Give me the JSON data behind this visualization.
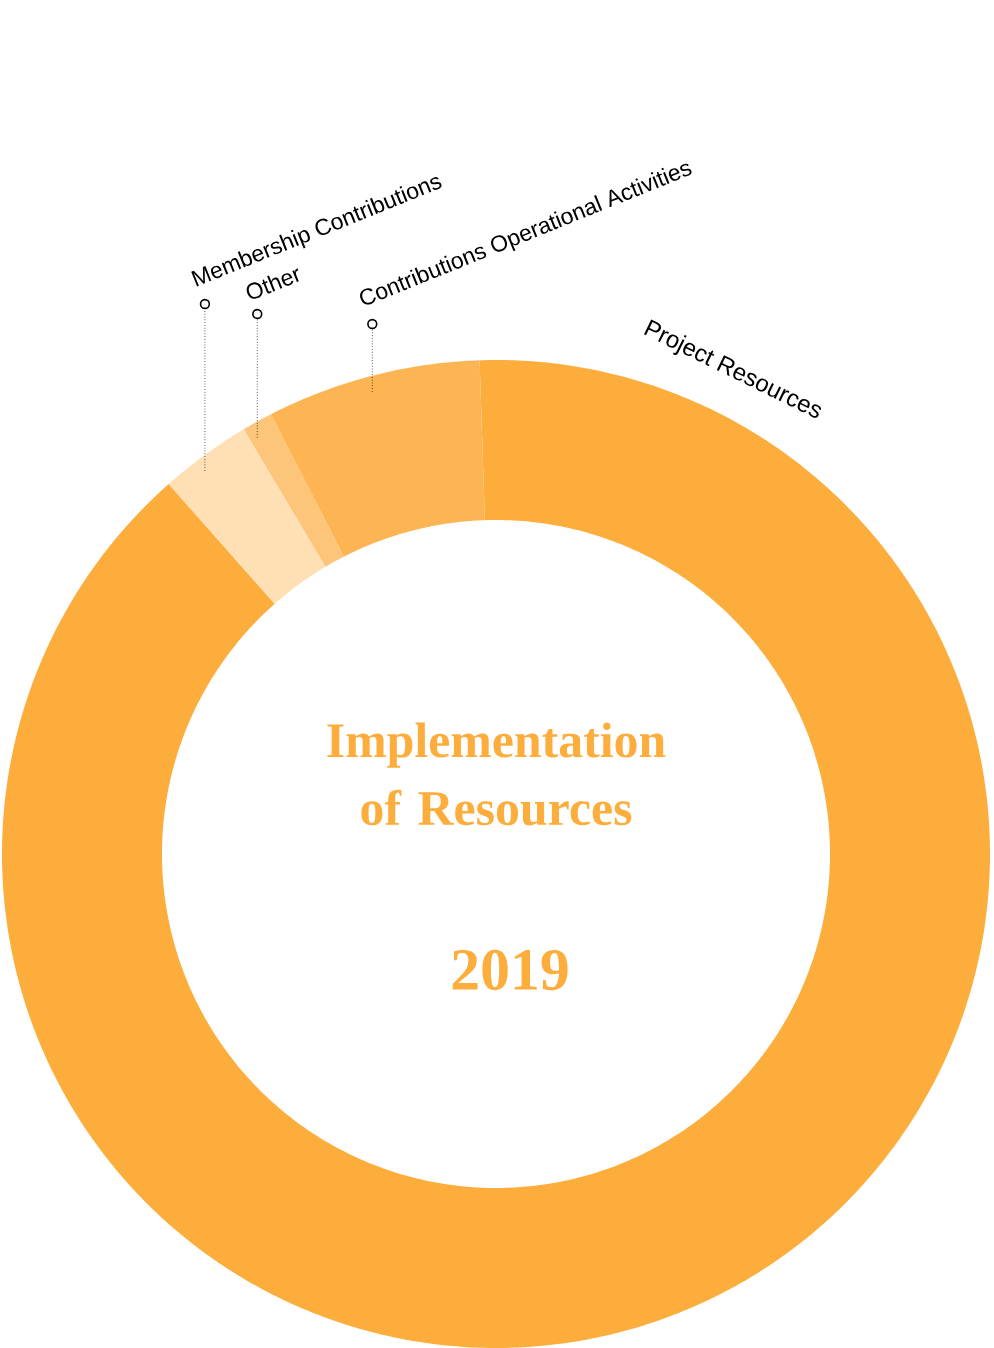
{
  "chart_data": {
    "type": "donut",
    "title": "Implementation of Resources",
    "subtitle": "2019",
    "categories": [
      "Project Resources",
      "Membership Contributions",
      "Other",
      "Contributions Operational Activities"
    ],
    "values": [
      89,
      3,
      1,
      7
    ],
    "colors": [
      "#fdad3c",
      "#fee0b4",
      "#fdc57a",
      "#fdb554"
    ]
  }
}
